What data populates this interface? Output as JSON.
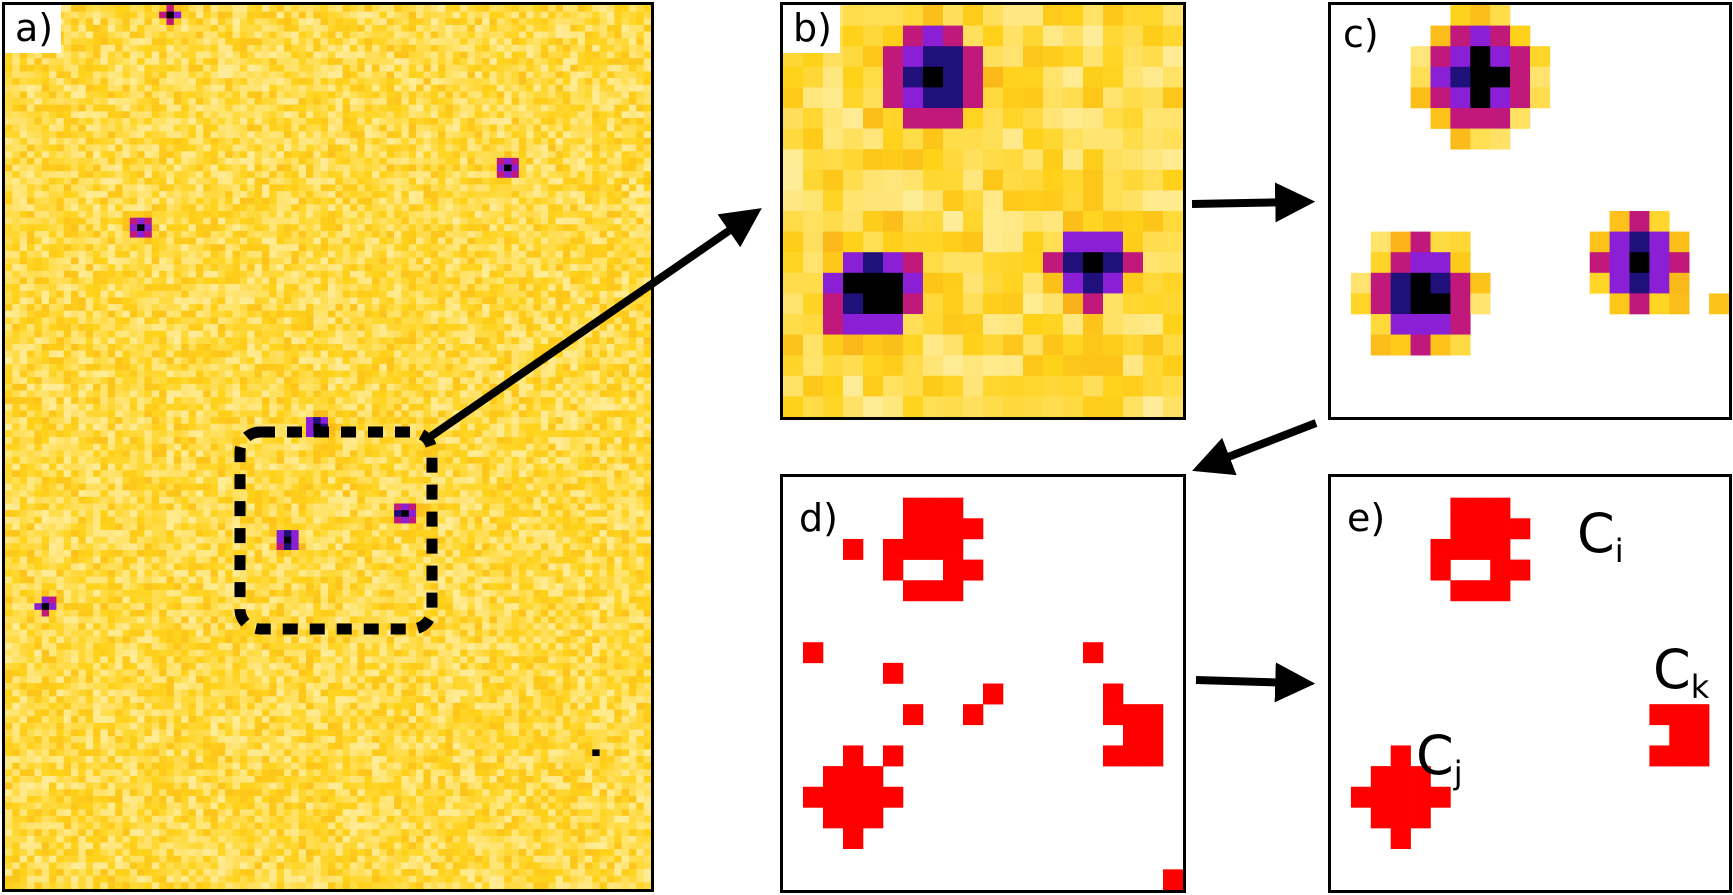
{
  "panels": {
    "a": {
      "label": "a)"
    },
    "b": {
      "label": "b)"
    },
    "c": {
      "label": "c)"
    },
    "d": {
      "label": "d)"
    },
    "e": {
      "label": "e)"
    }
  },
  "clusters": {
    "ci": {
      "base": "C",
      "sub": "i"
    },
    "cj": {
      "base": "C",
      "sub": "j"
    },
    "ck": {
      "base": "C",
      "sub": "k"
    }
  },
  "colors": {
    "heat_low": "#fffbe0",
    "heat_mid": "#ffd21a",
    "heat_high": "#f28b1a",
    "defect_magenta": "#c1187c",
    "defect_purple": "#8a1fd6",
    "defect_navy": "#20107a",
    "defect_black": "#000000",
    "cluster_red": "#ff0000",
    "frame": "#000000"
  }
}
